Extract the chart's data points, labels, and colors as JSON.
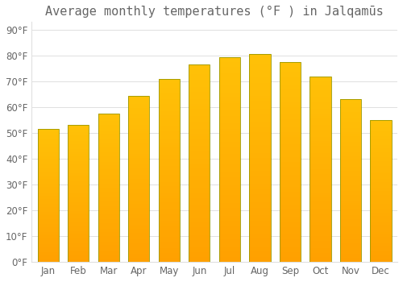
{
  "title": "Average monthly temperatures (°F ) in Jalqamūs",
  "months": [
    "Jan",
    "Feb",
    "Mar",
    "Apr",
    "May",
    "Jun",
    "Jul",
    "Aug",
    "Sep",
    "Oct",
    "Nov",
    "Dec"
  ],
  "values": [
    51.5,
    53.0,
    57.5,
    64.5,
    71.0,
    76.5,
    79.5,
    80.5,
    77.5,
    72.0,
    63.0,
    55.0
  ],
  "bar_color_top": "#FFC107",
  "bar_color_bottom": "#FFA500",
  "bar_edge_color": "#999900",
  "background_color": "#FFFFFF",
  "grid_color": "#E0E0E0",
  "text_color": "#666666",
  "yticks": [
    0,
    10,
    20,
    30,
    40,
    50,
    60,
    70,
    80,
    90
  ],
  "ylim": [
    0,
    93
  ],
  "title_fontsize": 11,
  "tick_fontsize": 8.5
}
